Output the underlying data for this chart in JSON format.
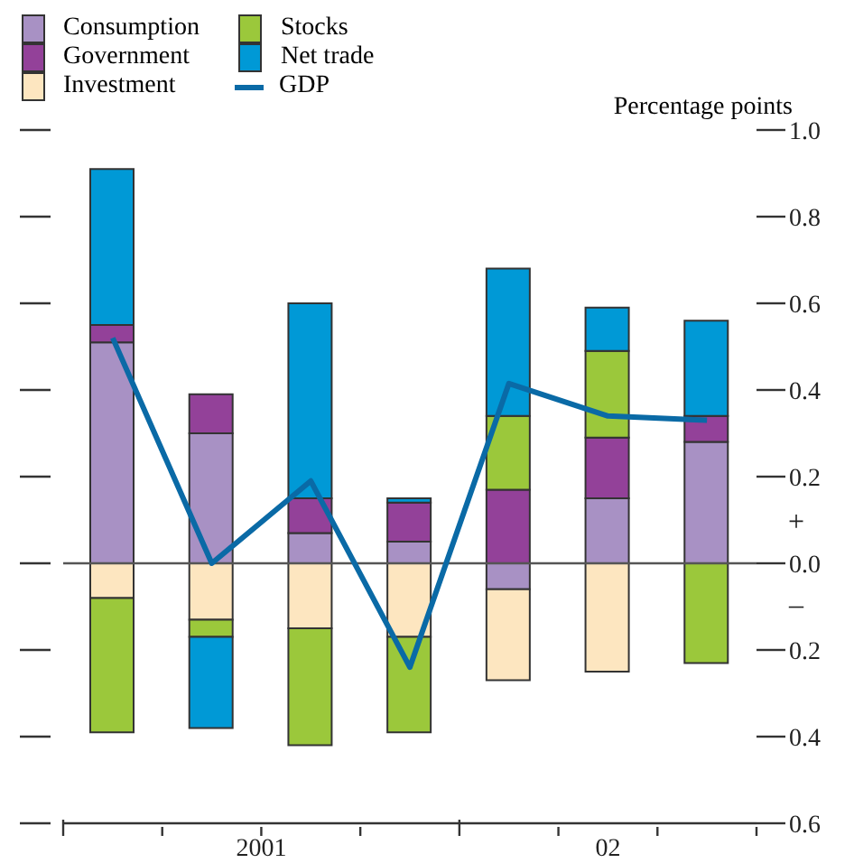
{
  "chart_data": {
    "type": "bar",
    "stacked": true,
    "ylabel": "Percentage points",
    "categories": [
      null,
      null,
      null,
      null,
      null,
      null,
      null
    ],
    "series": [
      {
        "name": "Consumption",
        "color": "#a891c4",
        "values": [
          0.51,
          0.3,
          0.07,
          0.05,
          -0.06,
          0.15,
          0.28
        ]
      },
      {
        "name": "Government",
        "color": "#934199",
        "values": [
          0.04,
          0.09,
          0.08,
          0.09,
          0.17,
          0.14,
          0.06
        ]
      },
      {
        "name": "Investment",
        "color": "#fde6c0",
        "values": [
          -0.08,
          -0.13,
          -0.15,
          -0.17,
          -0.21,
          -0.25,
          null
        ]
      },
      {
        "name": "Stocks",
        "color": "#9bc83b",
        "values": [
          -0.31,
          -0.04,
          -0.27,
          -0.22,
          0.17,
          0.2,
          -0.23
        ]
      },
      {
        "name": "Net trade",
        "color": "#0099d6",
        "values": [
          0.36,
          -0.21,
          0.45,
          0.01,
          0.34,
          0.1,
          0.22
        ]
      },
      {
        "name": "GDP",
        "type": "line",
        "color": "#0a6aa6",
        "values": [
          0.52,
          0.0,
          0.19,
          -0.24,
          0.415,
          0.34,
          0.33
        ]
      }
    ],
    "ylim": [
      -0.6,
      1.0
    ],
    "yticks": [
      {
        "value": -0.6,
        "label": "0.6"
      },
      {
        "value": -0.4,
        "label": "0.4"
      },
      {
        "value": -0.2,
        "label": "0.2"
      },
      {
        "value": 0,
        "label": "0.0"
      },
      0.2,
      0.4,
      0.6,
      0.8,
      {
        "value": 1,
        "label": "1.0"
      }
    ],
    "ref_lines": [
      {
        "axis": "y",
        "value": 0
      }
    ],
    "annotations": [
      "2001",
      "02",
      "+",
      "–"
    ],
    "legend": "top left",
    "marker": "none"
  }
}
